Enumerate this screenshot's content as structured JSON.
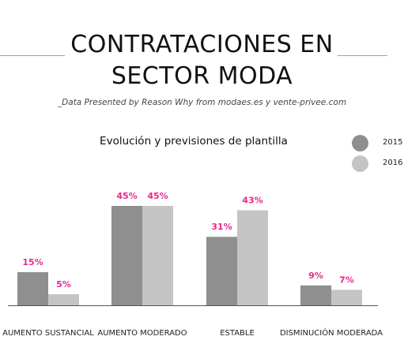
{
  "header": {
    "title_line1": "CONTRATACIONES EN",
    "title_line2": "SECTOR MODA",
    "subtitle": "_Data Presented by Reason Why from modaes.es y vente-privee.com"
  },
  "colors": {
    "series_2015": "#8f8f8f",
    "series_2016": "#c4c4c4",
    "value_label": "#e8288c",
    "accent_rule": "#4fc0d6",
    "baseline": "#555555"
  },
  "chart_data": {
    "type": "bar",
    "title": "Evolución y previsiones de plantilla",
    "categories": [
      "AUMENTO SUSTANCIAL",
      "AUMENTO MODERADO",
      "ESTABLE",
      "DISMINUCIÓN MODERADA"
    ],
    "series": [
      {
        "name": "2015",
        "values": [
          15,
          45,
          31,
          9
        ],
        "labels": [
          "15%",
          "45%",
          "31%",
          "9%"
        ]
      },
      {
        "name": "2016",
        "values": [
          5,
          45,
          43,
          7
        ],
        "labels": [
          "5%",
          "45%",
          "43%",
          "7%"
        ]
      }
    ],
    "unit": "%",
    "ylim": [
      0,
      45
    ],
    "grid": false,
    "legend_position": "top-right"
  }
}
